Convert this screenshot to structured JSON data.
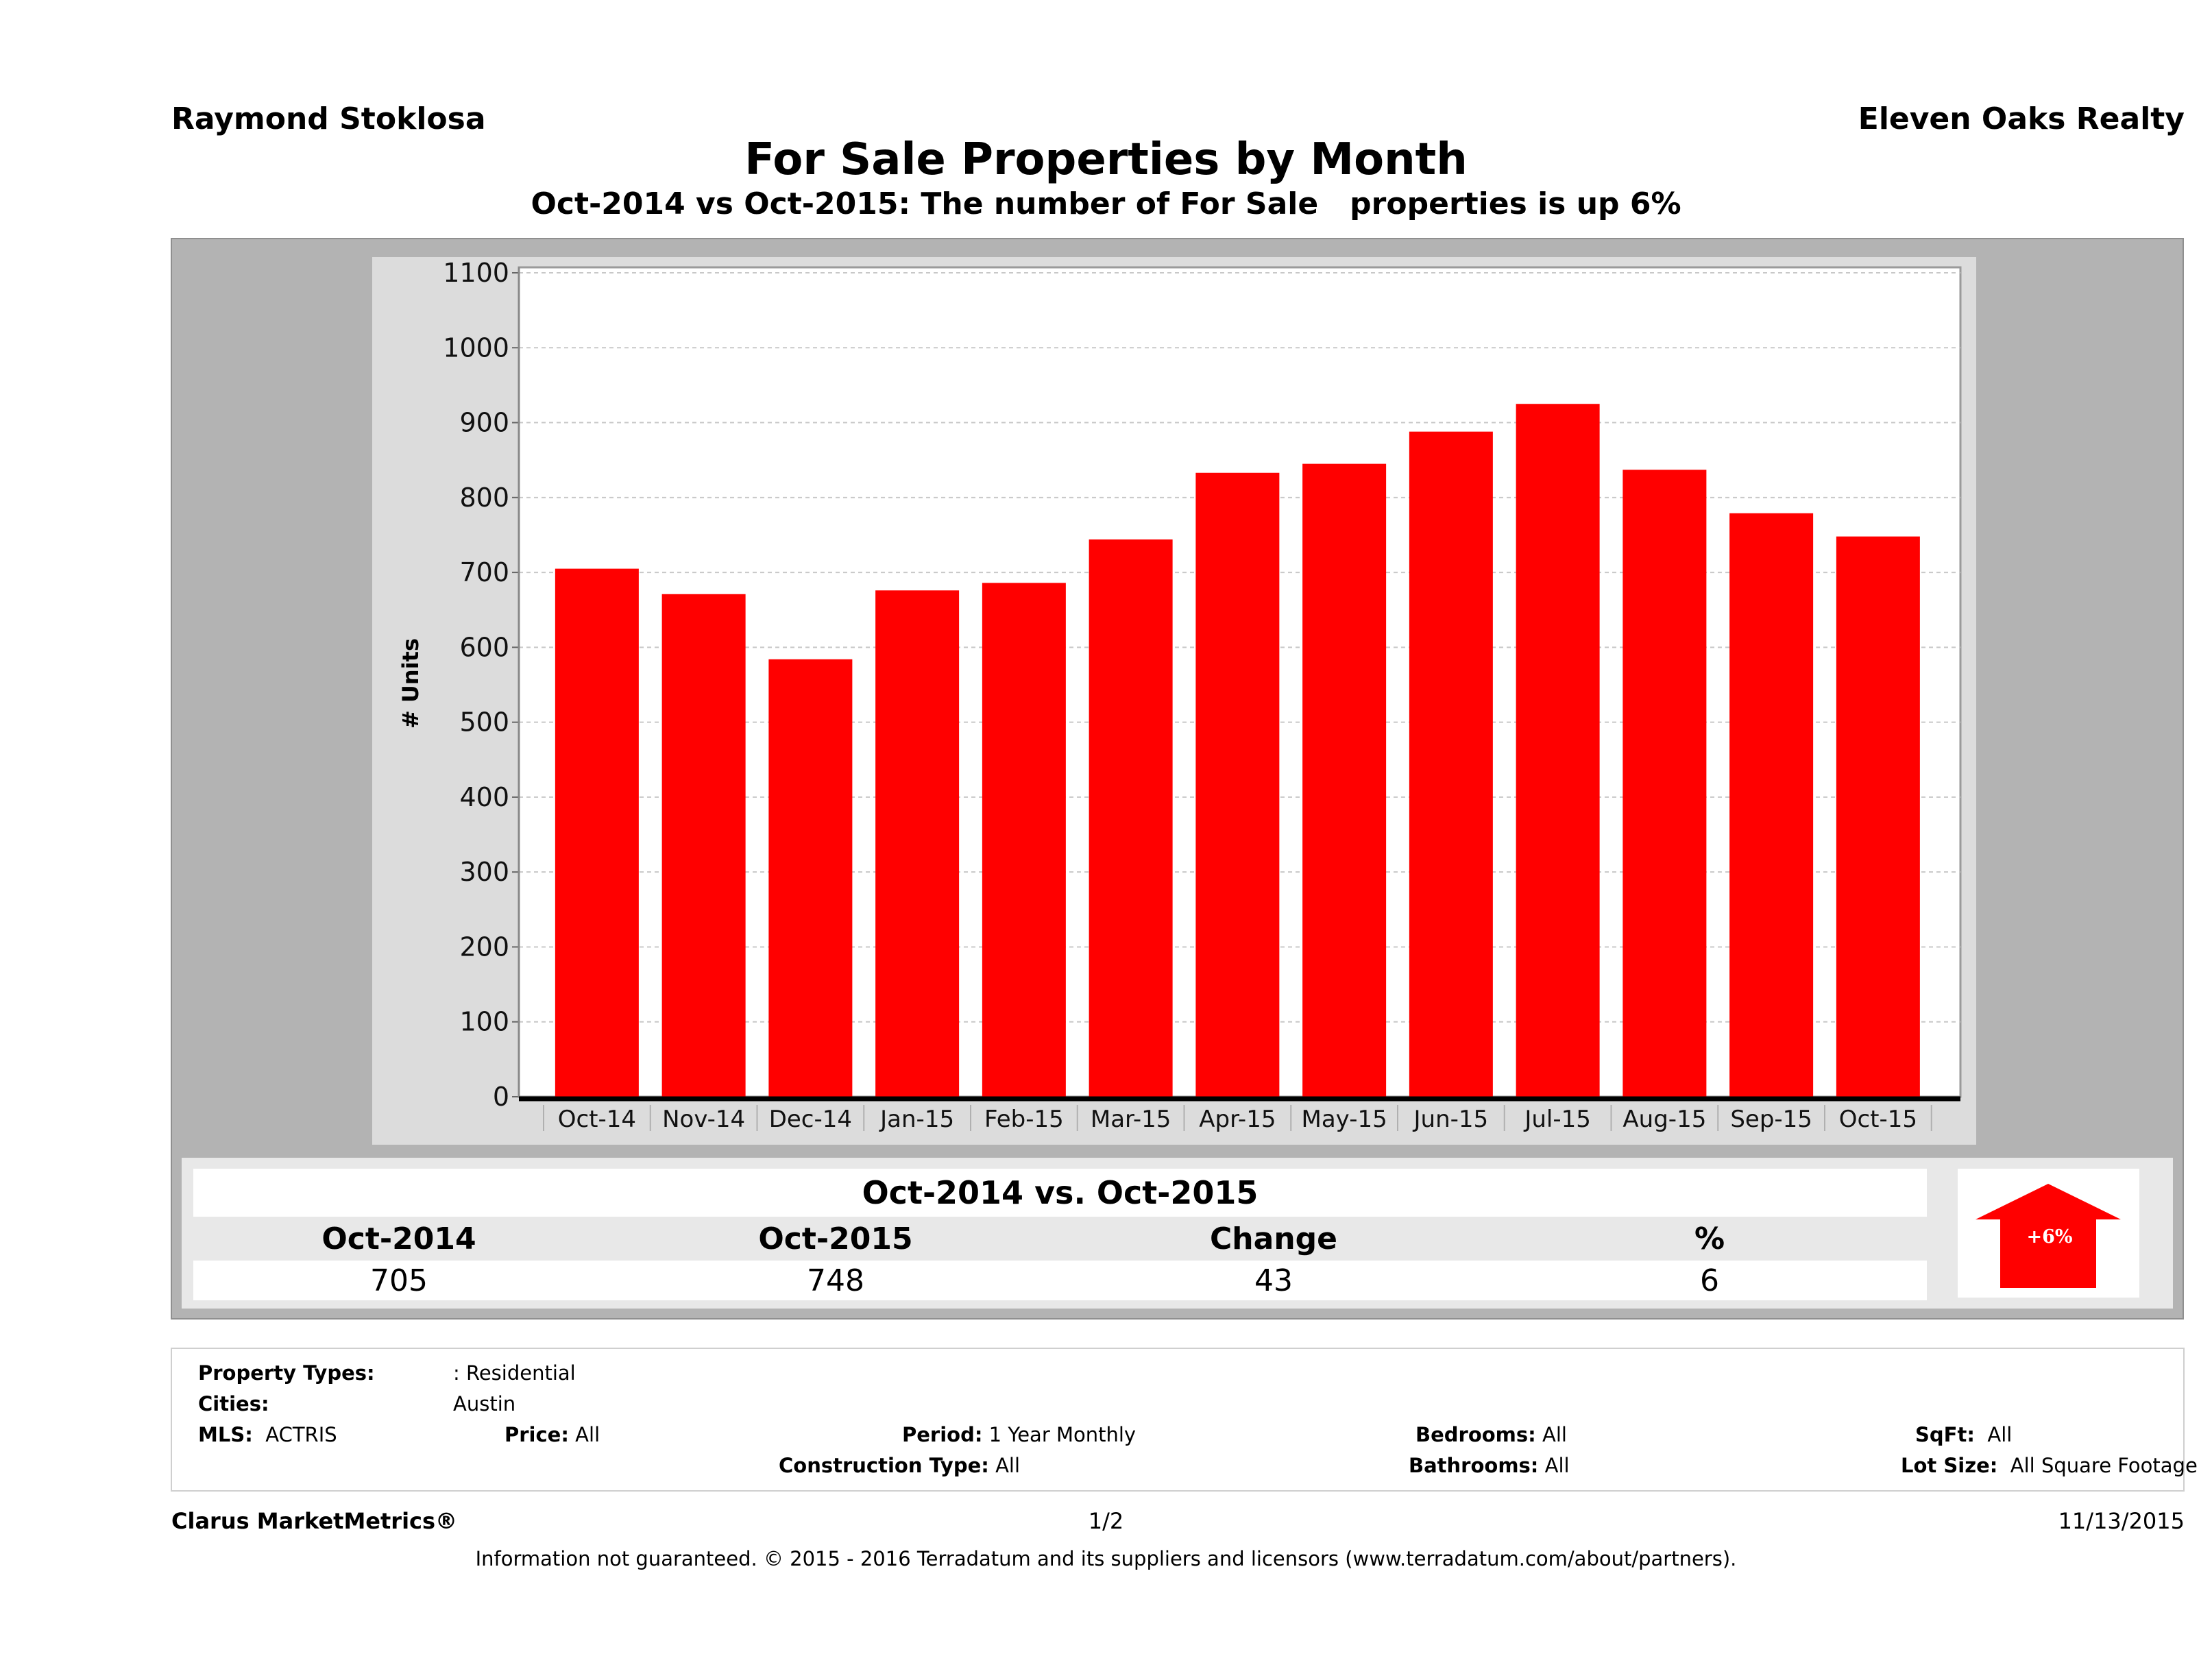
{
  "header": {
    "agent_name": "Raymond Stoklosa",
    "company_name": "Eleven Oaks Realty",
    "title": "For Sale Properties by Month",
    "subtitle": "Oct-2014 vs Oct-2015: The number of For Sale   properties is up 6%"
  },
  "chart_data": {
    "type": "bar",
    "title": "For Sale Properties by Month",
    "xlabel": "",
    "ylabel": "# Units",
    "categories": [
      "Oct-14",
      "Nov-14",
      "Dec-14",
      "Jan-15",
      "Feb-15",
      "Mar-15",
      "Apr-15",
      "May-15",
      "Jun-15",
      "Jul-15",
      "Aug-15",
      "Sep-15",
      "Oct-15"
    ],
    "values": [
      705,
      671,
      584,
      676,
      686,
      744,
      833,
      845,
      888,
      925,
      837,
      779,
      748
    ],
    "ylim": [
      0,
      1100
    ],
    "yticks": [
      0,
      100,
      200,
      300,
      400,
      500,
      600,
      700,
      800,
      900,
      1000,
      1100
    ],
    "grid": true,
    "legend": "none",
    "bar_color": "#ff0000"
  },
  "summary": {
    "title": "Oct-2014 vs. Oct-2015",
    "headers": [
      "Oct-2014",
      "Oct-2015",
      "Change",
      "%"
    ],
    "values": [
      "705",
      "748",
      "43",
      "6"
    ],
    "badge_label": "+6%",
    "badge_direction": "up",
    "badge_color": "#ff0000"
  },
  "filters": {
    "property_types_label": "Property Types:",
    "property_types_value": ": Residential",
    "cities_label": "Cities:",
    "cities_value": "Austin",
    "mls_label": "MLS:",
    "mls_value": "ACTRIS",
    "price_label": "Price:",
    "price_value": "All",
    "period_label": "Period:",
    "period_value": "1 Year Monthly",
    "construction_label": "Construction Type:",
    "construction_value": "All",
    "bedrooms_label": "Bedrooms:",
    "bedrooms_value": "All",
    "bathrooms_label": "Bathrooms:",
    "bathrooms_value": "All",
    "sqft_label": "SqFt:",
    "sqft_value": "All",
    "lotsize_label": "Lot Size:",
    "lotsize_value": "All Square Footage"
  },
  "footer": {
    "brand": "Clarus MarketMetrics®",
    "page": "1/2",
    "date": "11/13/2015",
    "disclaimer": "Information not guaranteed. © 2015 - 2016 Terradatum and its suppliers and licensors (www.terradatum.com/about/partners)."
  }
}
